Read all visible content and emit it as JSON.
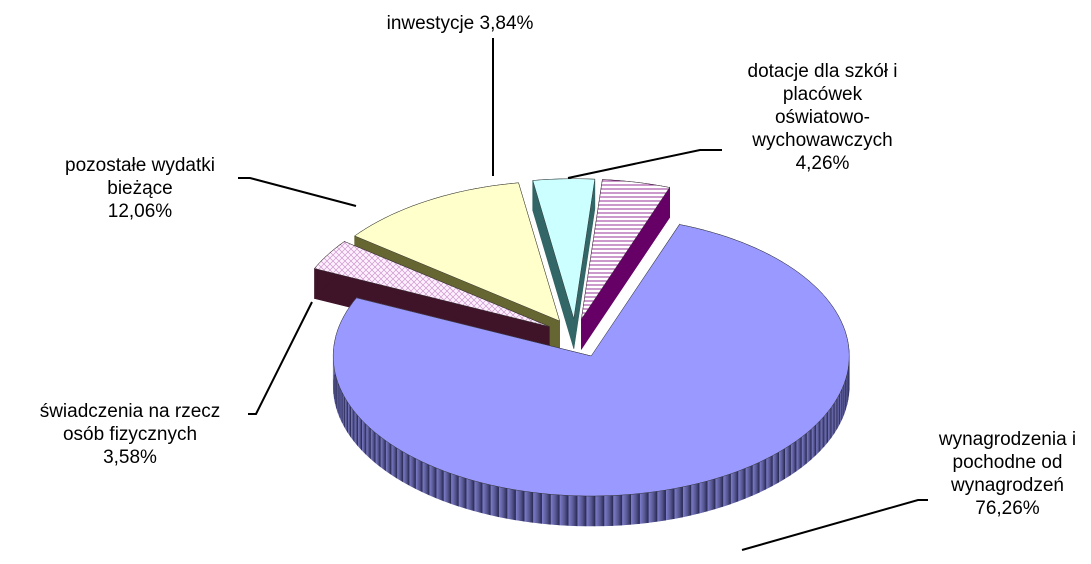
{
  "chart_data": {
    "type": "pie",
    "categories": [
      "wynagrodzenia i pochodne od wynagrodzeń",
      "świadczenia na rzecz osób fizycznych",
      "pozostałe wydatki bieżące",
      "inwestycje",
      "dotacje dla szkół i placówek oświatowo-wychowawczych"
    ],
    "values": [
      76.26,
      3.58,
      12.06,
      3.84,
      4.26
    ],
    "value_labels": [
      "76,26%",
      "3,58%",
      "12,06%",
      "3,84%",
      "4,26%"
    ],
    "colors": [
      "#9999ff",
      "#ffccff",
      "#ffffcc",
      "#ccffff",
      "#ffffff"
    ]
  }
}
